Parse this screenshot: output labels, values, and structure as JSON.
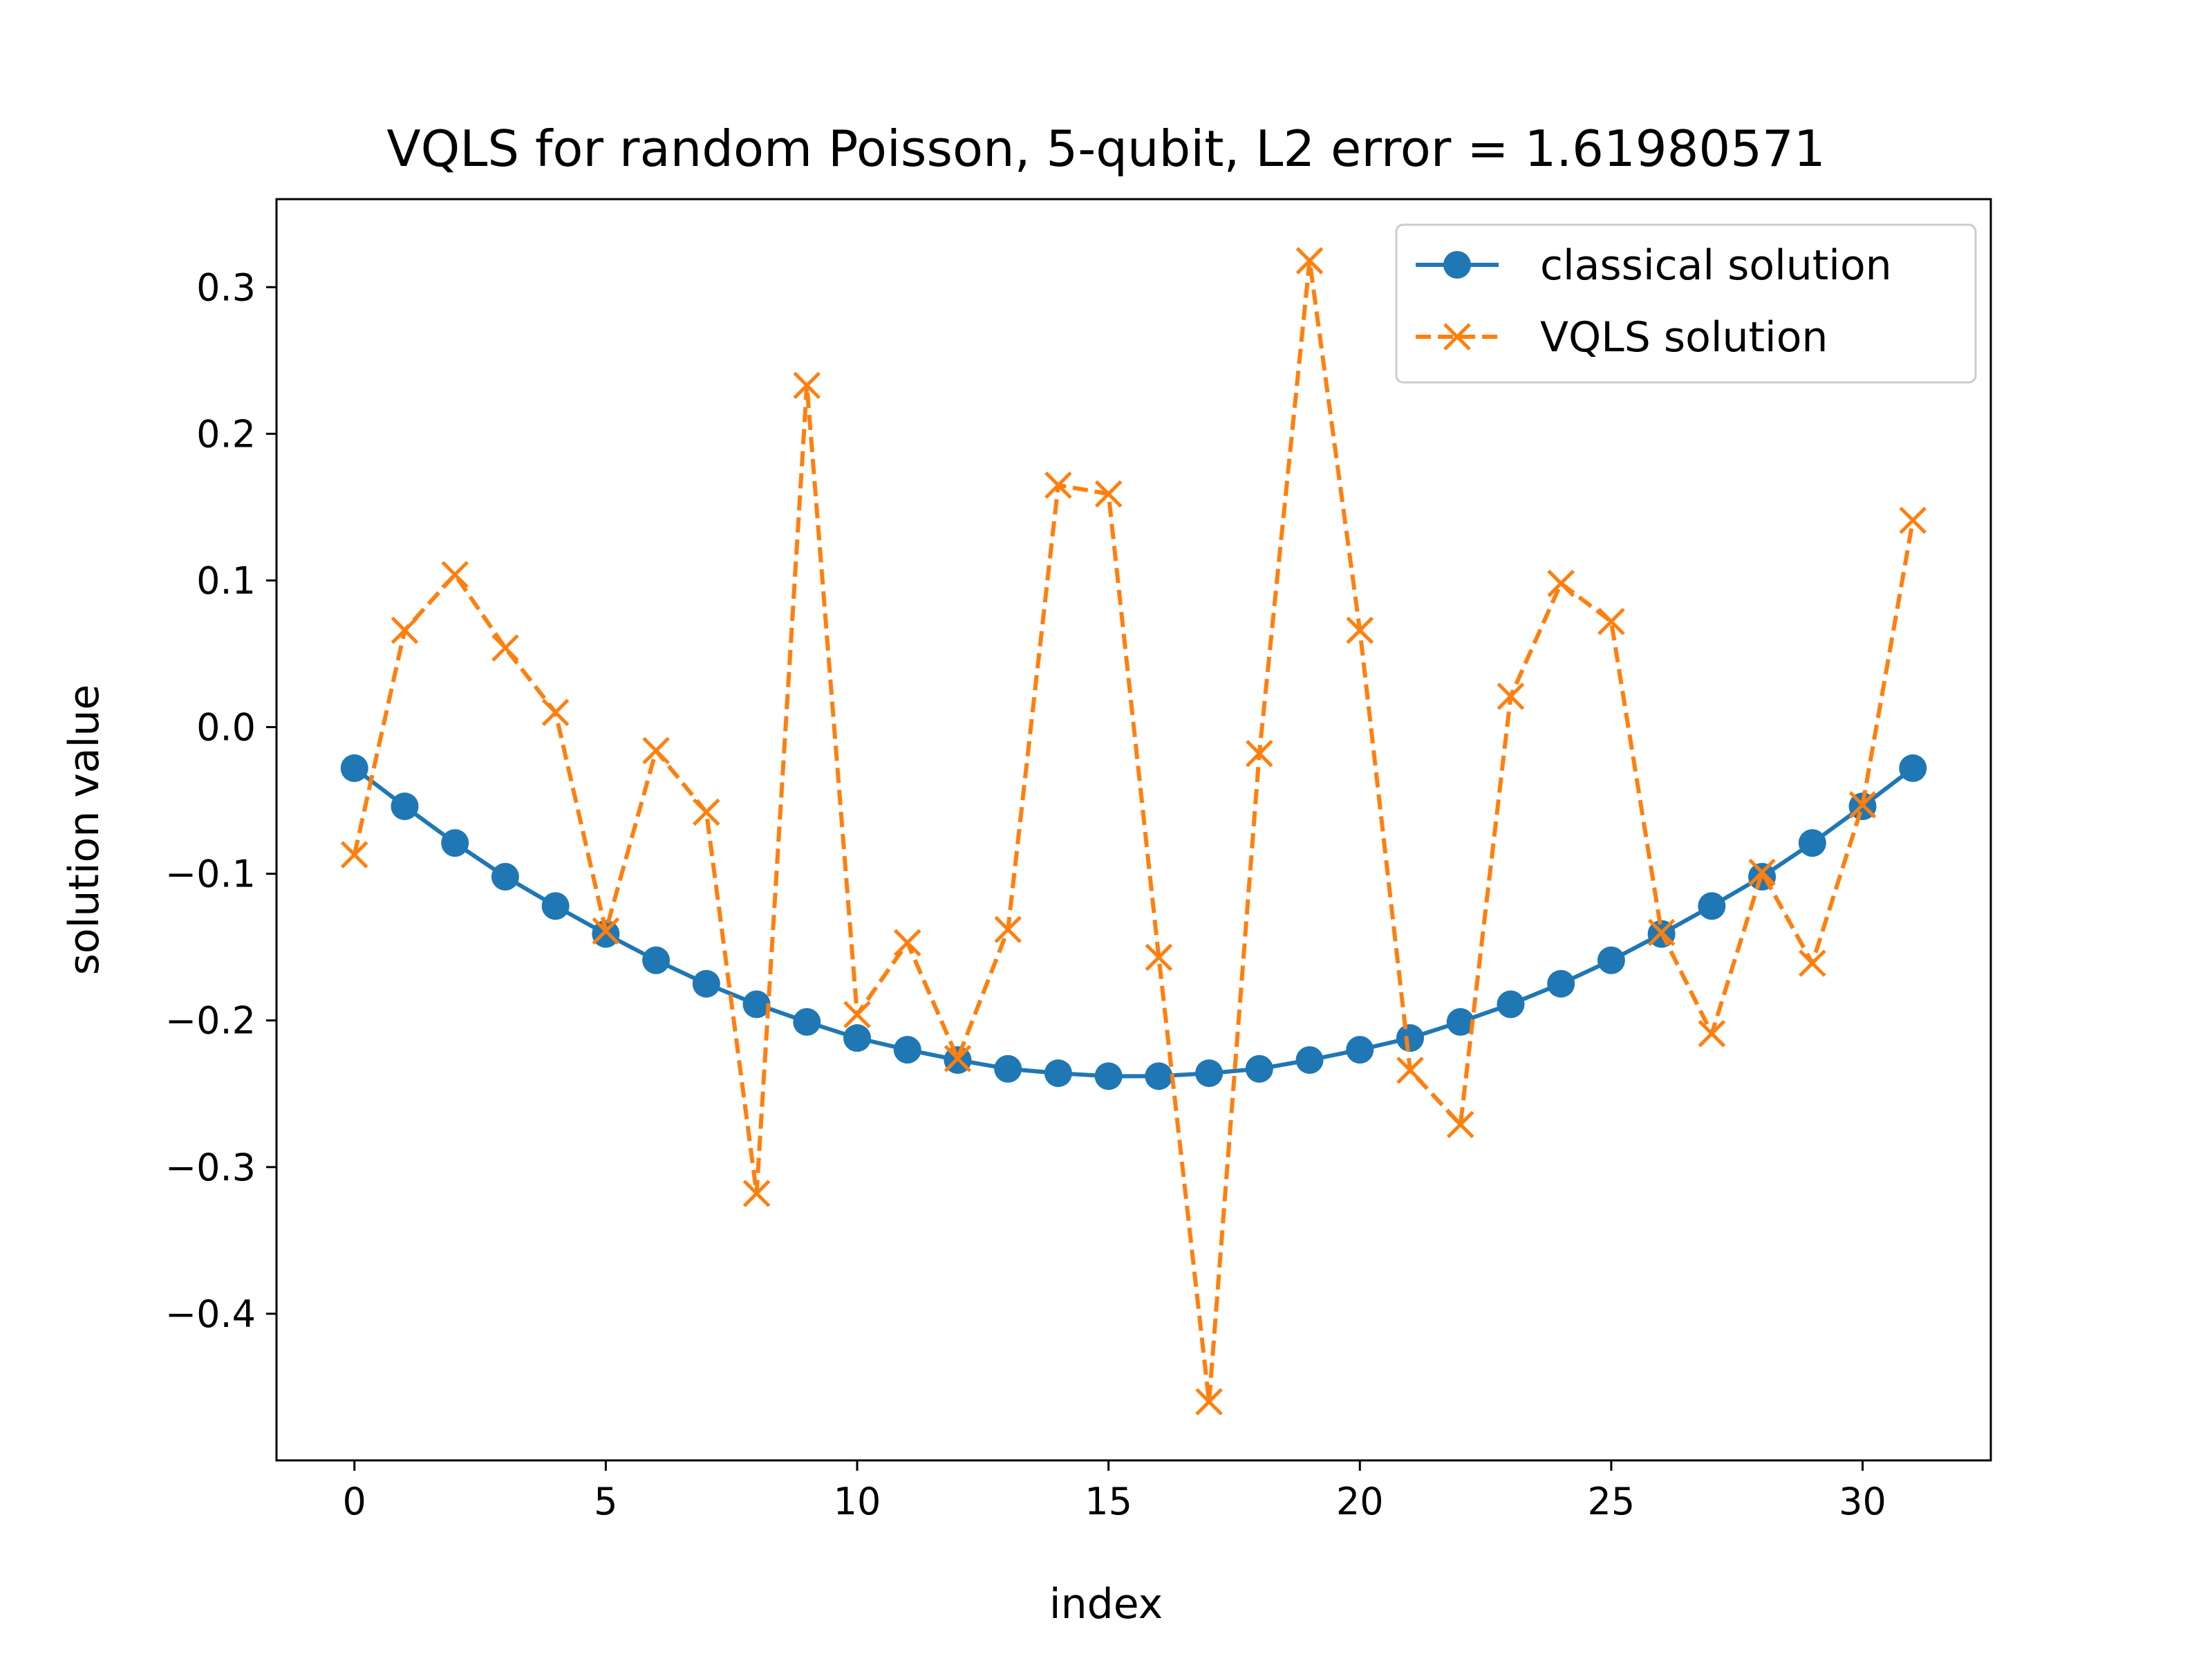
{
  "colors": {
    "classical": "#1f77b4",
    "vqls": "#ff7f0e",
    "axes": "#000000",
    "legend_border": "#cccccc"
  },
  "chart_data": {
    "type": "line",
    "title": "VQLS for random Poisson, 5-qubit, L2 error = 1.61980571",
    "xlabel": "index",
    "ylabel": "solution value",
    "xlim": [
      -1.55,
      32.55
    ],
    "ylim": [
      -0.5,
      0.36
    ],
    "xticks": [
      0,
      5,
      10,
      15,
      20,
      25,
      30
    ],
    "yticks": [
      -0.4,
      -0.3,
      -0.2,
      -0.1,
      0.0,
      0.1,
      0.2,
      0.3
    ],
    "xtick_labels": [
      "0",
      "5",
      "10",
      "15",
      "20",
      "25",
      "30"
    ],
    "ytick_labels": [
      "−0.4",
      "−0.3",
      "−0.2",
      "−0.1",
      "0.0",
      "0.1",
      "0.2",
      "0.3"
    ],
    "grid": false,
    "legend_position": "top-right",
    "x": [
      0,
      1,
      2,
      3,
      4,
      5,
      6,
      7,
      8,
      9,
      10,
      11,
      12,
      13,
      14,
      15,
      16,
      17,
      18,
      19,
      20,
      21,
      22,
      23,
      24,
      25,
      26,
      27,
      28,
      29,
      30,
      31
    ],
    "series": [
      {
        "name": "classical solution",
        "marker": "circle",
        "linestyle": "solid",
        "color": "#1f77b4",
        "values": [
          -0.028,
          -0.054,
          -0.079,
          -0.102,
          -0.122,
          -0.141,
          -0.159,
          -0.175,
          -0.189,
          -0.201,
          -0.212,
          -0.22,
          -0.227,
          -0.233,
          -0.236,
          -0.238,
          -0.238,
          -0.236,
          -0.233,
          -0.227,
          -0.22,
          -0.212,
          -0.201,
          -0.189,
          -0.175,
          -0.159,
          -0.141,
          -0.122,
          -0.102,
          -0.079,
          -0.054,
          -0.028
        ]
      },
      {
        "name": "VQLS solution",
        "marker": "x",
        "linestyle": "dashed",
        "color": "#ff7f0e",
        "values": [
          -0.087,
          0.066,
          0.104,
          0.054,
          0.01,
          -0.139,
          -0.016,
          -0.058,
          -0.318,
          0.233,
          -0.196,
          -0.147,
          -0.226,
          -0.138,
          0.165,
          0.159,
          -0.157,
          -0.46,
          -0.018,
          0.318,
          0.066,
          -0.234,
          -0.271,
          0.021,
          0.098,
          0.072,
          -0.14,
          -0.209,
          -0.099,
          -0.161,
          -0.053,
          0.141
        ]
      }
    ]
  }
}
